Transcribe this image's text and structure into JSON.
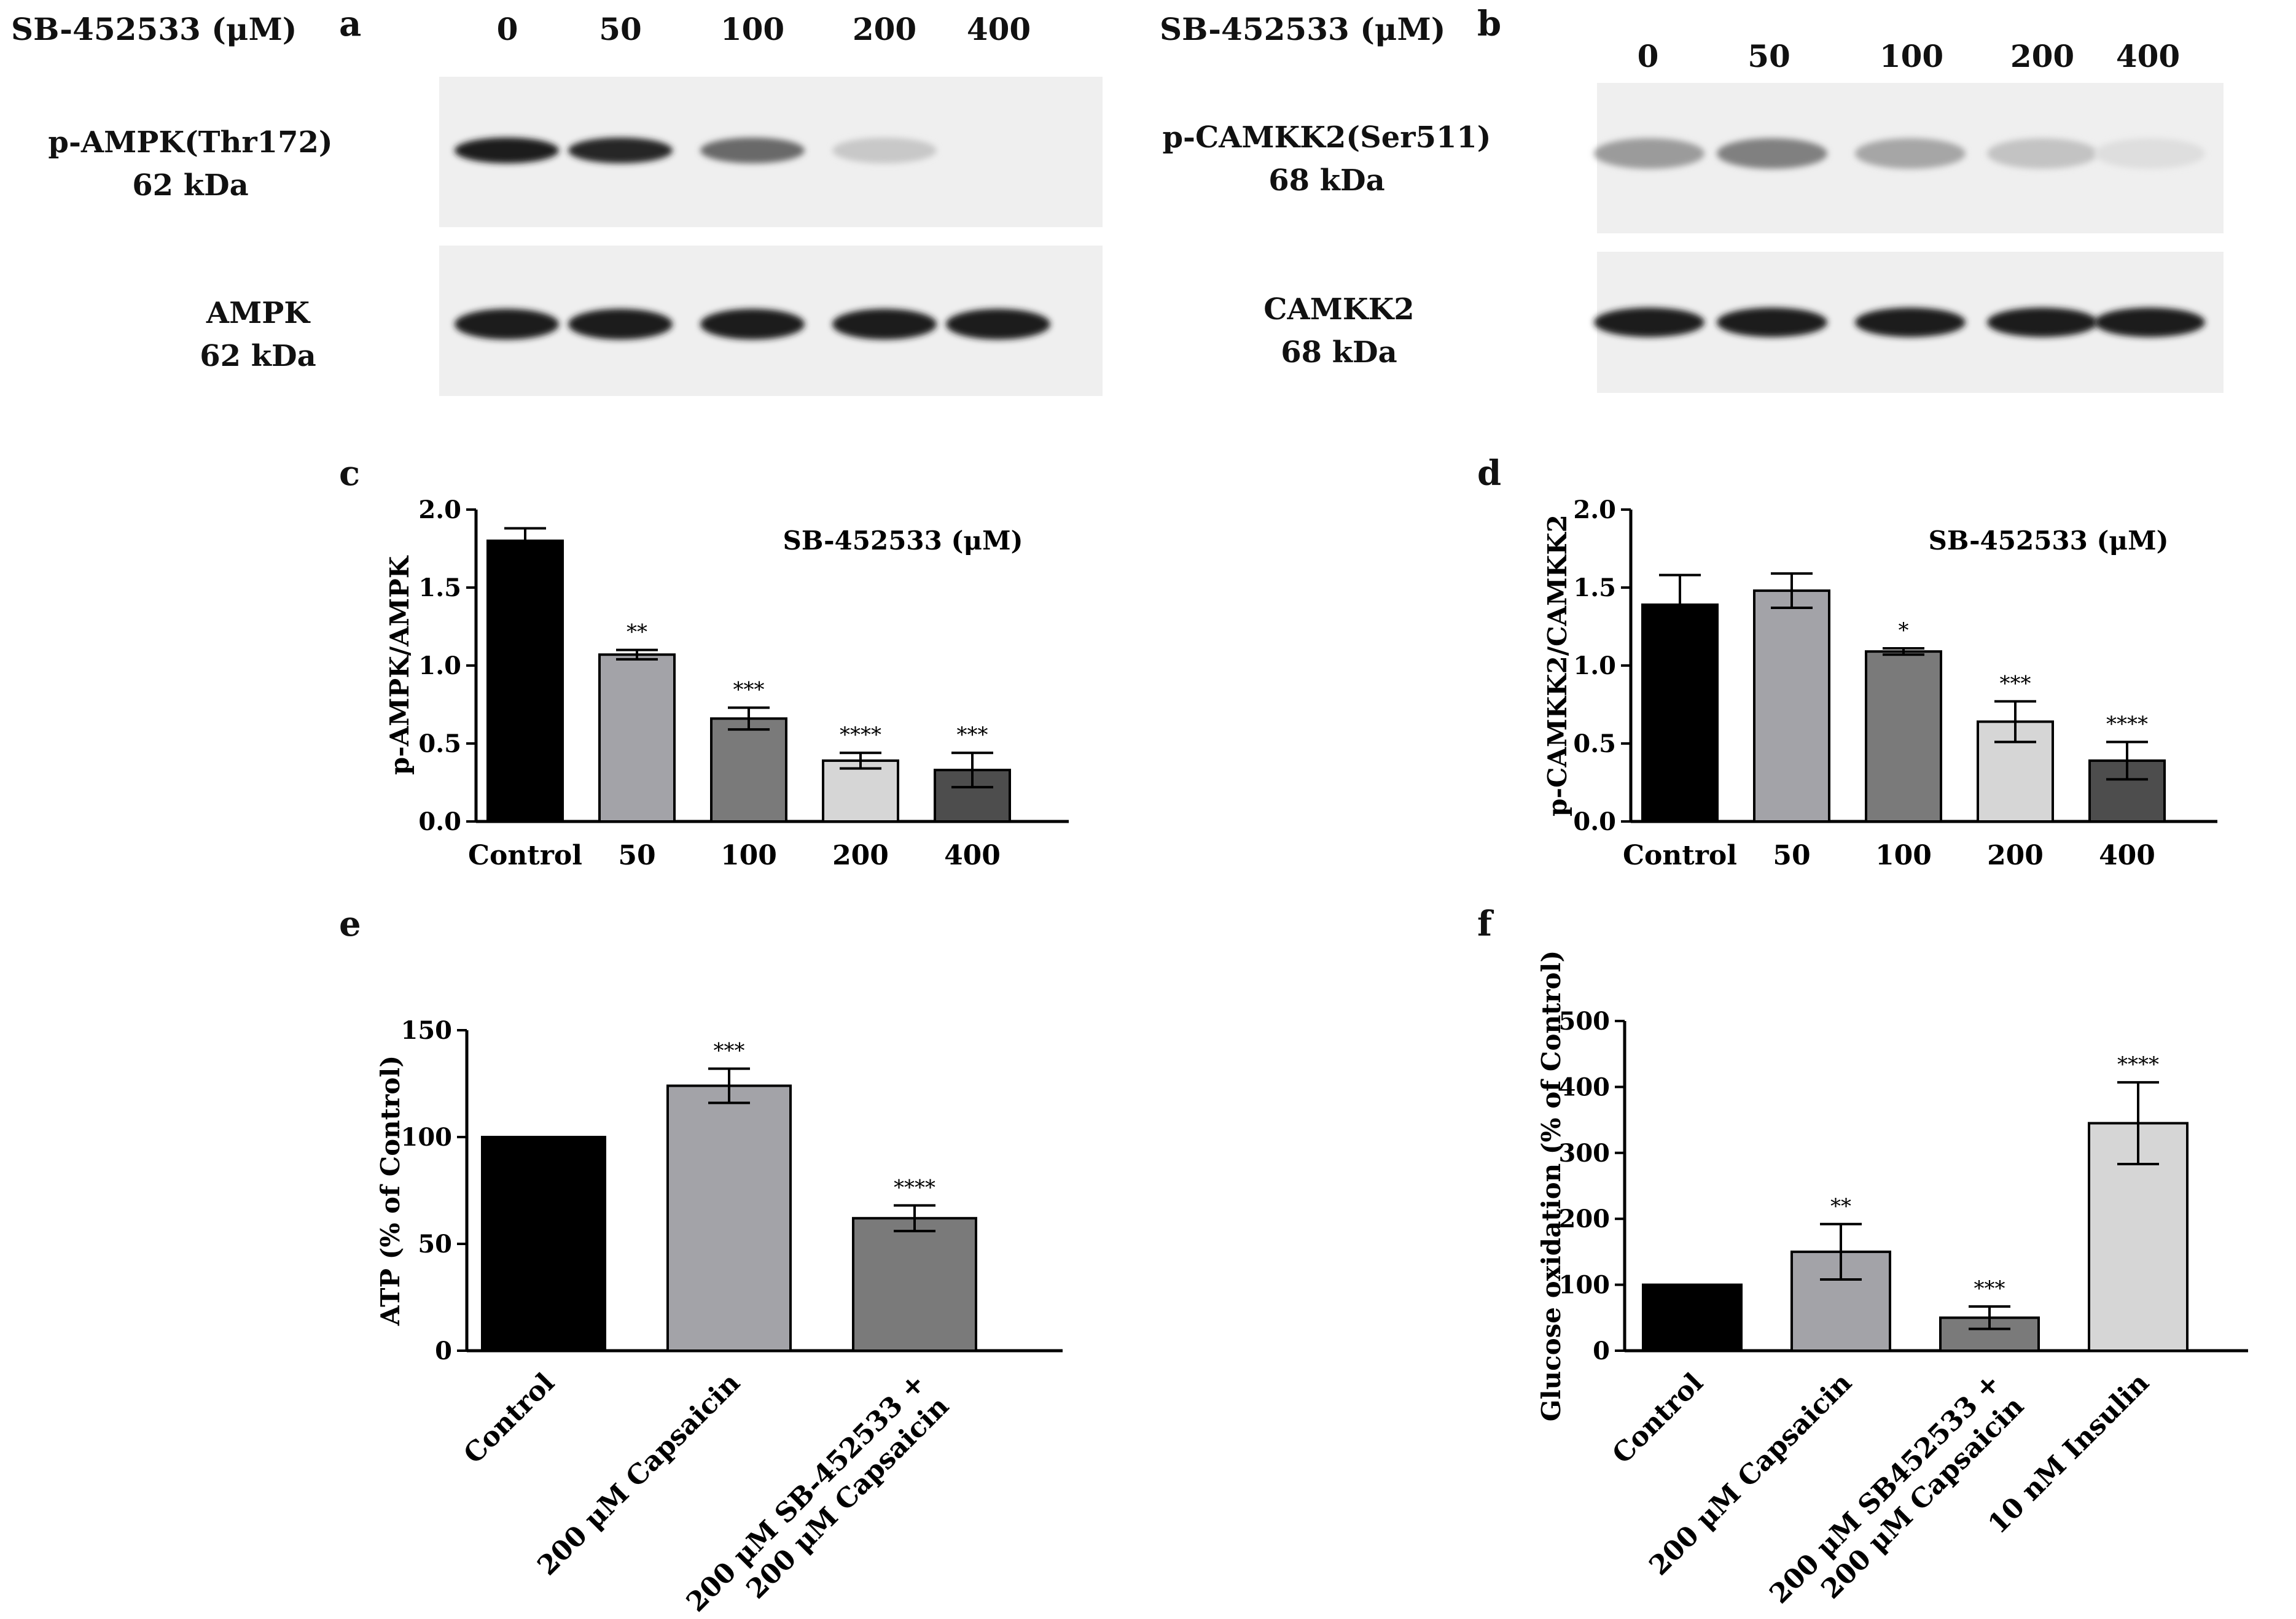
{
  "panel_letters": {
    "a": "a",
    "b": "b",
    "c": "c",
    "d": "d",
    "e": "e",
    "f": "f"
  },
  "blot_a": {
    "header": "SB-452533 (μM)",
    "lanes": [
      "0",
      "50",
      "100",
      "200",
      "400"
    ],
    "rows": [
      {
        "name": "p-AMPK(Thr172)",
        "mw": "62 kDa",
        "intensity": [
          0.95,
          0.9,
          0.6,
          0.18,
          0.0
        ]
      },
      {
        "name": "AMPK",
        "mw": "62 kDa",
        "intensity": [
          0.95,
          0.95,
          0.93,
          0.93,
          0.93
        ]
      }
    ]
  },
  "blot_b": {
    "header": "SB-452533 (μM)",
    "lanes": [
      "0",
      "50",
      "100",
      "200",
      "400"
    ],
    "rows": [
      {
        "name": "p-CAMKK2(Ser511)",
        "mw": "68 kDa",
        "intensity": [
          0.38,
          0.5,
          0.33,
          0.2,
          0.08
        ]
      },
      {
        "name": "CAMKK2",
        "mw": "68 kDa",
        "intensity": [
          0.95,
          0.95,
          0.95,
          0.93,
          0.93
        ]
      }
    ]
  },
  "chart_data": [
    {
      "id": "c",
      "type": "bar",
      "title": "SB-452533 (μM)",
      "categories": [
        "Control",
        "50",
        "100",
        "200",
        "400"
      ],
      "values": [
        1.8,
        1.07,
        0.66,
        0.39,
        0.33
      ],
      "errors": [
        0.08,
        0.03,
        0.07,
        0.05,
        0.11
      ],
      "significance": [
        "",
        "**",
        "***",
        "****",
        "***"
      ],
      "colors": [
        "#000000",
        "#a3a3a8",
        "#7a7a7a",
        "#d6d6d6",
        "#4d4d4d"
      ],
      "ylabel": "p-AMPK/AMPK",
      "ylim": [
        0,
        2.0
      ],
      "yticks": [
        0.0,
        0.5,
        1.0,
        1.5,
        2.0
      ],
      "ytick_labels": [
        "0.0",
        "0.5",
        "1.0",
        "1.5",
        "2.0"
      ]
    },
    {
      "id": "d",
      "type": "bar",
      "title": "SB-452533 (μM)",
      "categories": [
        "Control",
        "50",
        "100",
        "200",
        "400"
      ],
      "values": [
        1.39,
        1.48,
        1.09,
        0.64,
        0.39
      ],
      "errors": [
        0.19,
        0.11,
        0.02,
        0.13,
        0.12
      ],
      "significance": [
        "",
        "",
        "*",
        "***",
        "****"
      ],
      "colors": [
        "#000000",
        "#a3a3a8",
        "#7a7a7a",
        "#d6d6d6",
        "#4d4d4d"
      ],
      "ylabel": "p-CAMKK2/CAMKK2",
      "ylim": [
        0,
        2.0
      ],
      "yticks": [
        0.0,
        0.5,
        1.0,
        1.5,
        2.0
      ],
      "ytick_labels": [
        "0.0",
        "0.5",
        "1.0",
        "1.5",
        "2.0"
      ]
    },
    {
      "id": "e",
      "type": "bar",
      "categories": [
        "Control",
        "200 μM Capsaicin",
        [
          "200 μM SB-452533 +",
          "200 μM Capsaicin"
        ]
      ],
      "values": [
        100,
        124,
        62
      ],
      "errors": [
        0,
        8,
        6
      ],
      "significance": [
        "",
        "***",
        "****"
      ],
      "colors": [
        "#000000",
        "#a3a3a8",
        "#7a7a7a"
      ],
      "ylabel": "ATP (% of Control)",
      "ylim": [
        0,
        150
      ],
      "yticks": [
        0,
        50,
        100,
        150
      ],
      "ytick_labels": [
        "0",
        "50",
        "100",
        "150"
      ]
    },
    {
      "id": "f",
      "type": "bar",
      "categories": [
        "Control",
        "200 μM Capsaicin",
        [
          "200 μM SB452533 +",
          "200 μM Capsaicin"
        ],
        "10 nM Insulin"
      ],
      "values": [
        100,
        150,
        50,
        345
      ],
      "errors": [
        0,
        42,
        17,
        62
      ],
      "significance": [
        "",
        "**",
        "***",
        "****"
      ],
      "colors": [
        "#000000",
        "#a3a3a8",
        "#7a7a7a",
        "#d6d6d6"
      ],
      "ylabel": "Glucose oxidation (% of Control)",
      "ylim": [
        0,
        500
      ],
      "yticks": [
        0,
        100,
        200,
        300,
        400,
        500
      ],
      "ytick_labels": [
        "0",
        "100",
        "200",
        "300",
        "400",
        "500"
      ]
    }
  ]
}
